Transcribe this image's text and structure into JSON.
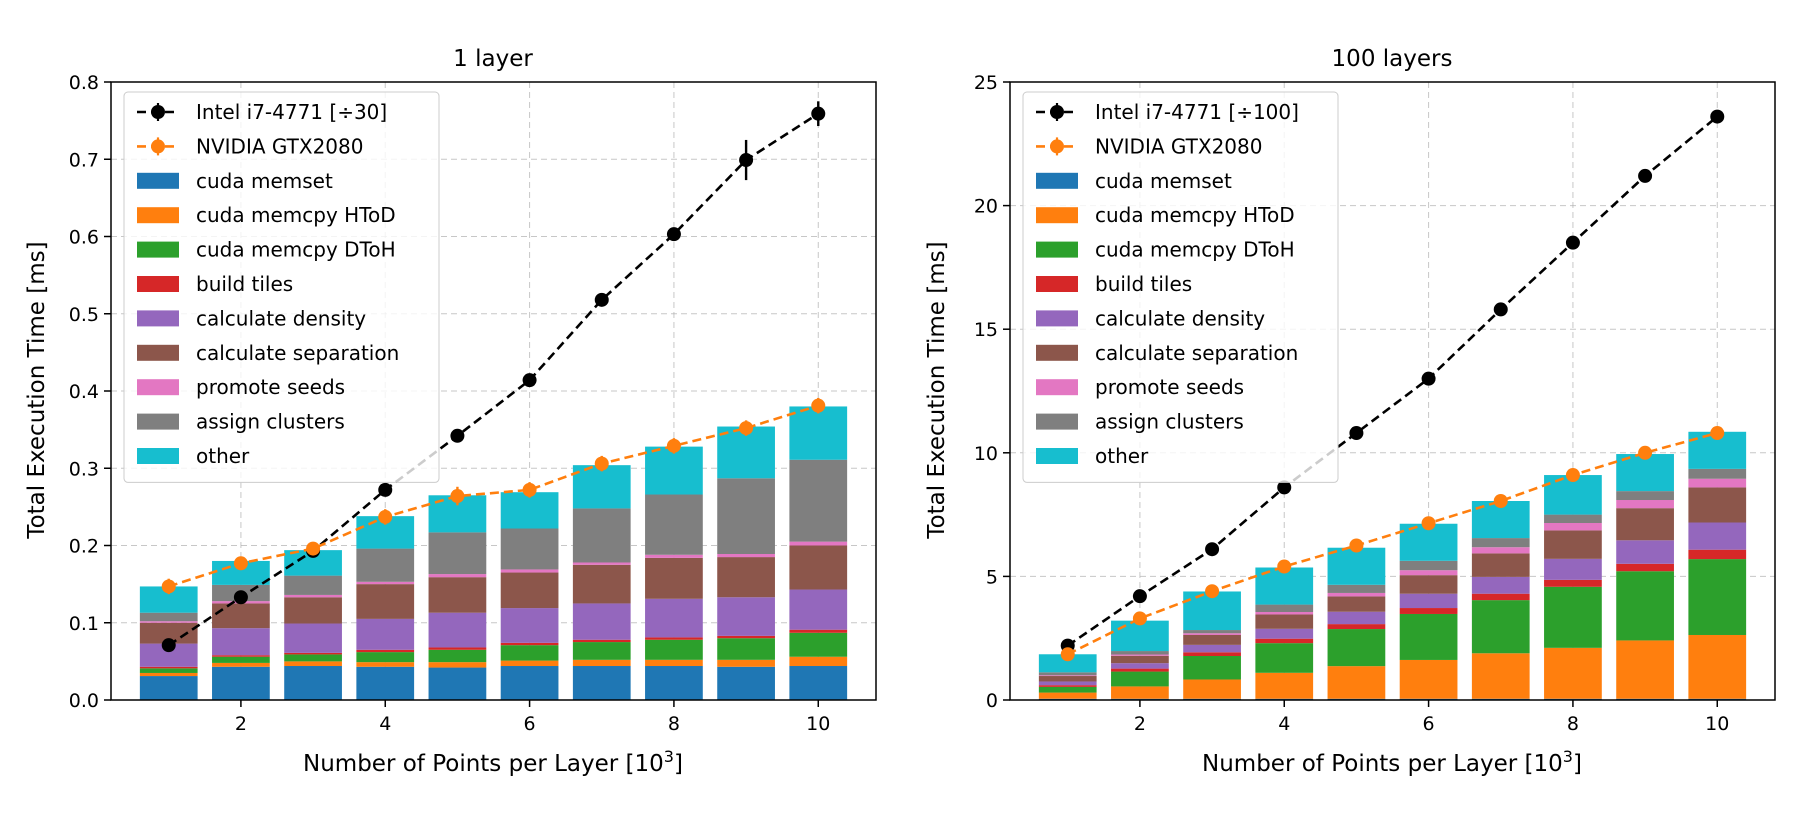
{
  "colors": {
    "cpu": "#000000",
    "gpu": "#ff7f0e",
    "cuda_memset": "#1f77b4",
    "cuda_memcpy_htod": "#ff7f0e",
    "cuda_memcpy_dtoh": "#2ca02c",
    "build_tiles": "#d62728",
    "calculate_density": "#9467bd",
    "calculate_separation": "#8c564b",
    "promote_seeds": "#e377c2",
    "assign_clusters": "#7f7f7f",
    "other": "#17becf"
  },
  "chart_data": [
    {
      "type": "bar",
      "title": "1 layer",
      "xlabel": "Number of Points per Layer [10",
      "xlabel_sup": "3",
      "xlabel_end": "]",
      "ylabel": "Total Execution Time [ms]",
      "xlim": [
        0.2,
        10.8
      ],
      "ylim": [
        0,
        0.8
      ],
      "xticks": [
        2,
        4,
        6,
        8,
        10
      ],
      "yticks": [
        0.0,
        0.1,
        0.2,
        0.3,
        0.4,
        0.5,
        0.6,
        0.7,
        0.8
      ],
      "ytick_labels": [
        "0.0",
        "0.1",
        "0.2",
        "0.3",
        "0.4",
        "0.5",
        "0.6",
        "0.7",
        "0.8"
      ],
      "grid": true,
      "legend_position": "top-left",
      "x": [
        1,
        2,
        3,
        4,
        5,
        6,
        7,
        8,
        9,
        10
      ],
      "stacked_series": [
        {
          "name": "cuda memset",
          "color_key": "cuda_memset",
          "values": [
            0.031,
            0.043,
            0.044,
            0.043,
            0.042,
            0.044,
            0.044,
            0.044,
            0.043,
            0.044
          ]
        },
        {
          "name": "cuda memcpy HToD",
          "color_key": "cuda_memcpy_htod",
          "values": [
            0.004,
            0.005,
            0.006,
            0.006,
            0.007,
            0.007,
            0.008,
            0.008,
            0.009,
            0.012
          ]
        },
        {
          "name": "cuda memcpy DToH",
          "color_key": "cuda_memcpy_dtoh",
          "values": [
            0.006,
            0.008,
            0.009,
            0.013,
            0.016,
            0.02,
            0.023,
            0.026,
            0.028,
            0.031
          ]
        },
        {
          "name": "build tiles",
          "color_key": "build_tiles",
          "values": [
            0.002,
            0.002,
            0.002,
            0.003,
            0.003,
            0.003,
            0.003,
            0.003,
            0.003,
            0.004
          ]
        },
        {
          "name": "calculate density",
          "color_key": "calculate_density",
          "values": [
            0.03,
            0.035,
            0.038,
            0.04,
            0.045,
            0.045,
            0.047,
            0.05,
            0.05,
            0.052
          ]
        },
        {
          "name": "calculate separation",
          "color_key": "calculate_separation",
          "values": [
            0.027,
            0.032,
            0.034,
            0.045,
            0.046,
            0.046,
            0.05,
            0.053,
            0.052,
            0.057
          ]
        },
        {
          "name": "promote seeds",
          "color_key": "promote_seeds",
          "values": [
            0.002,
            0.003,
            0.003,
            0.003,
            0.004,
            0.004,
            0.003,
            0.004,
            0.004,
            0.005
          ]
        },
        {
          "name": "assign clusters",
          "color_key": "assign_clusters",
          "values": [
            0.011,
            0.021,
            0.025,
            0.043,
            0.054,
            0.053,
            0.07,
            0.078,
            0.098,
            0.106
          ]
        },
        {
          "name": "other",
          "color_key": "other",
          "values": [
            0.034,
            0.031,
            0.033,
            0.042,
            0.048,
            0.047,
            0.056,
            0.062,
            0.067,
            0.069
          ]
        }
      ],
      "line_series": [
        {
          "name": "Intel i7-4771 [÷30]",
          "color_key": "cpu",
          "values": [
            0.071,
            0.133,
            0.193,
            0.272,
            0.342,
            0.414,
            0.518,
            0.603,
            0.699,
            0.759
          ],
          "errors": [
            0.004,
            0.005,
            0.005,
            0.006,
            0.006,
            0.007,
            0.007,
            0.008,
            0.026,
            0.016
          ]
        },
        {
          "name": "NVIDIA GTX2080",
          "color_key": "gpu",
          "values": [
            0.147,
            0.177,
            0.196,
            0.237,
            0.264,
            0.272,
            0.306,
            0.329,
            0.352,
            0.381
          ],
          "errors": [
            0.01,
            0.008,
            0.008,
            0.01,
            0.012,
            0.01,
            0.01,
            0.01,
            0.01,
            0.01
          ]
        }
      ],
      "legend": [
        "Intel i7-4771 [÷30]",
        "NVIDIA GTX2080",
        "cuda memset",
        "cuda memcpy HToD",
        "cuda memcpy DToH",
        "build tiles",
        "calculate density",
        "calculate separation",
        "promote seeds",
        "assign clusters",
        "other"
      ]
    },
    {
      "type": "bar",
      "title": "100 layers",
      "xlabel": "Number of Points per Layer [10",
      "xlabel_sup": "3",
      "xlabel_end": "]",
      "ylabel": "Total Execution Time [ms]",
      "xlim": [
        0.2,
        10.8
      ],
      "ylim": [
        0,
        25
      ],
      "xticks": [
        2,
        4,
        6,
        8,
        10
      ],
      "yticks": [
        0,
        5,
        10,
        15,
        20,
        25
      ],
      "ytick_labels": [
        "0",
        "5",
        "10",
        "15",
        "20",
        "25"
      ],
      "grid": true,
      "legend_position": "top-left",
      "x": [
        1,
        2,
        3,
        4,
        5,
        6,
        7,
        8,
        9,
        10
      ],
      "stacked_series": [
        {
          "name": "cuda memset",
          "color_key": "cuda_memset",
          "values": [
            0.05,
            0.05,
            0.05,
            0.05,
            0.05,
            0.05,
            0.05,
            0.05,
            0.05,
            0.05
          ]
        },
        {
          "name": "cuda memcpy HToD",
          "color_key": "cuda_memcpy_htod",
          "values": [
            0.25,
            0.5,
            0.78,
            1.05,
            1.32,
            1.57,
            1.84,
            2.06,
            2.36,
            2.58
          ]
        },
        {
          "name": "cuda memcpy DToH",
          "color_key": "cuda_memcpy_dtoh",
          "values": [
            0.23,
            0.6,
            0.95,
            1.2,
            1.5,
            1.86,
            2.15,
            2.47,
            2.8,
            3.07
          ]
        },
        {
          "name": "build tiles",
          "color_key": "build_tiles",
          "values": [
            0.07,
            0.12,
            0.15,
            0.18,
            0.2,
            0.24,
            0.26,
            0.28,
            0.3,
            0.38
          ]
        },
        {
          "name": "calculate density",
          "color_key": "calculate_density",
          "values": [
            0.15,
            0.22,
            0.3,
            0.4,
            0.5,
            0.58,
            0.68,
            0.85,
            0.95,
            1.1
          ]
        },
        {
          "name": "calculate separation",
          "color_key": "calculate_separation",
          "values": [
            0.22,
            0.3,
            0.4,
            0.58,
            0.62,
            0.75,
            0.95,
            1.15,
            1.3,
            1.42
          ]
        },
        {
          "name": "promote seeds",
          "color_key": "promote_seeds",
          "values": [
            0.03,
            0.05,
            0.07,
            0.1,
            0.14,
            0.2,
            0.25,
            0.3,
            0.33,
            0.35
          ]
        },
        {
          "name": "assign clusters",
          "color_key": "assign_clusters",
          "values": [
            0.12,
            0.14,
            0.13,
            0.3,
            0.33,
            0.38,
            0.37,
            0.34,
            0.36,
            0.4
          ]
        },
        {
          "name": "other",
          "color_key": "other",
          "values": [
            0.73,
            1.23,
            1.56,
            1.5,
            1.5,
            1.5,
            1.5,
            1.6,
            1.5,
            1.5
          ]
        }
      ],
      "line_series": [
        {
          "name": "Intel i7-4771 [÷100]",
          "color_key": "cpu",
          "values": [
            2.2,
            4.2,
            6.1,
            8.6,
            10.8,
            13.0,
            15.8,
            18.5,
            21.2,
            23.6
          ],
          "errors": [
            0.1,
            0.1,
            0.1,
            0.15,
            0.15,
            0.15,
            0.15,
            0.15,
            0.15,
            0.15
          ]
        },
        {
          "name": "NVIDIA GTX2080",
          "color_key": "gpu",
          "values": [
            1.85,
            3.3,
            4.4,
            5.4,
            6.25,
            7.15,
            8.05,
            9.1,
            10.0,
            10.8
          ],
          "errors": [
            0.1,
            0.1,
            0.1,
            0.1,
            0.1,
            0.1,
            0.1,
            0.1,
            0.1,
            0.1
          ]
        }
      ],
      "legend": [
        "Intel i7-4771 [÷100]",
        "NVIDIA GTX2080",
        "cuda memset",
        "cuda memcpy HToD",
        "cuda memcpy DToH",
        "build tiles",
        "calculate density",
        "calculate separation",
        "promote seeds",
        "assign clusters",
        "other"
      ]
    }
  ]
}
